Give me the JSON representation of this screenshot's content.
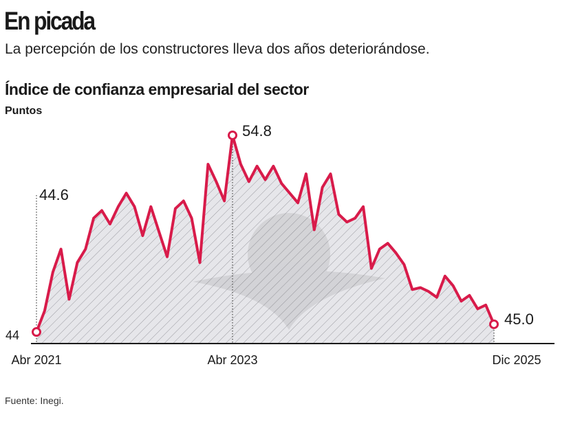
{
  "header": {
    "title": "En picada",
    "subtitle": "La percepción de los constructores lleva dos años deteriorándose."
  },
  "footer": {
    "source": "Fuente: Inegi."
  },
  "chart_data": {
    "type": "area",
    "title": "Índice de confianza empresarial del sector",
    "ylabel": "Puntos",
    "xlabel": "",
    "ylim": [
      44,
      55.5
    ],
    "y_tick_label": "44",
    "x_tick_labels": [
      {
        "x": "2021-04",
        "label": "Abr 2021"
      },
      {
        "x": "2023-04",
        "label": "Abr 2023"
      },
      {
        "x": "2025-12",
        "label": "Dic 2025"
      }
    ],
    "annotations": [
      {
        "x": "2021-04",
        "label": "44.6"
      },
      {
        "x": "2023-04",
        "label": "54.8"
      },
      {
        "x": "2025-12",
        "label": "45.0"
      }
    ],
    "colors": {
      "line": "#d81b4a",
      "fill": "#e6e6ea",
      "hatch": "#9a9aa0"
    },
    "grid": false,
    "x": [
      "2021-04",
      "2021-05",
      "2021-06",
      "2021-07",
      "2021-08",
      "2021-09",
      "2021-10",
      "2021-11",
      "2021-12",
      "2022-01",
      "2022-02",
      "2022-03",
      "2022-04",
      "2022-05",
      "2022-06",
      "2022-07",
      "2022-08",
      "2022-09",
      "2022-10",
      "2022-11",
      "2022-12",
      "2023-01",
      "2023-02",
      "2023-03",
      "2023-04",
      "2023-05",
      "2023-06",
      "2023-07",
      "2023-08",
      "2023-09",
      "2023-10",
      "2023-11",
      "2023-12",
      "2024-01",
      "2024-02",
      "2024-03",
      "2024-04",
      "2024-05",
      "2024-06",
      "2024-07",
      "2024-08",
      "2024-09",
      "2024-10",
      "2024-11",
      "2024-12",
      "2025-01",
      "2025-02",
      "2025-03",
      "2025-04",
      "2025-05",
      "2025-06",
      "2025-07",
      "2025-08",
      "2025-09",
      "2025-10",
      "2025-11",
      "2025-12"
    ],
    "values": [
      44.6,
      45.7,
      47.7,
      48.9,
      46.3,
      48.2,
      48.9,
      50.5,
      50.9,
      50.2,
      51.1,
      51.8,
      51.1,
      49.6,
      51.1,
      49.8,
      48.5,
      51.0,
      51.4,
      50.5,
      48.2,
      53.3,
      52.4,
      51.4,
      54.8,
      53.3,
      52.4,
      53.2,
      52.5,
      53.2,
      52.3,
      51.8,
      51.3,
      52.8,
      49.9,
      52.1,
      52.8,
      50.7,
      50.3,
      50.5,
      51.1,
      47.9,
      48.9,
      49.2,
      48.7,
      48.1,
      46.8,
      46.9,
      46.7,
      46.4,
      47.5,
      47.0,
      46.2,
      46.5,
      45.8,
      46.0,
      45.0
    ]
  }
}
